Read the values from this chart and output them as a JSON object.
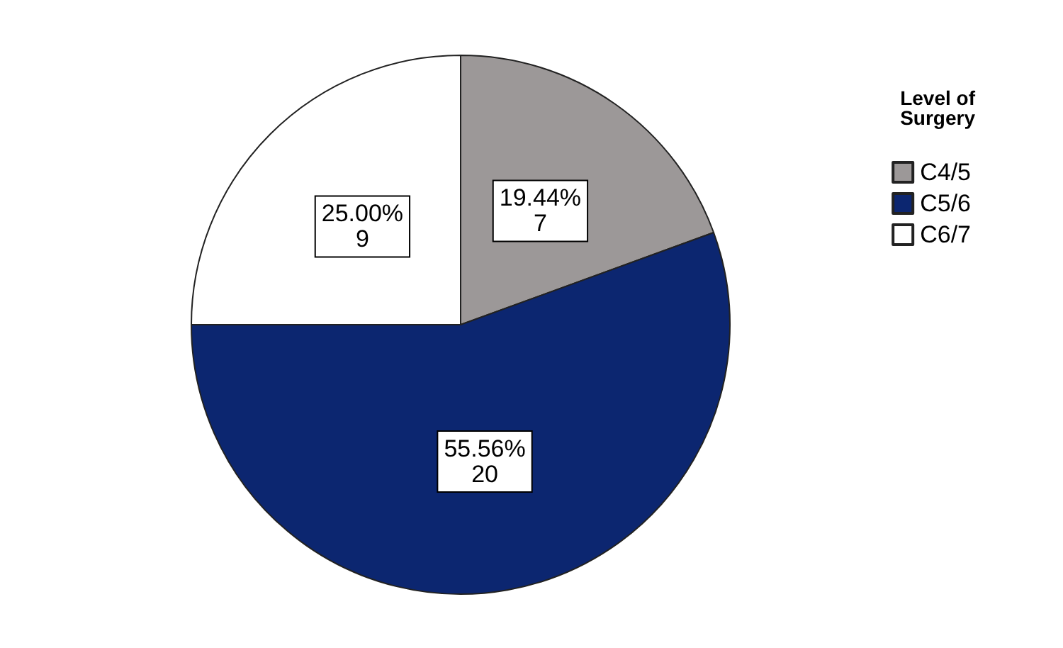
{
  "chart_data": {
    "type": "pie",
    "legend_title": "Level of\nSurgery",
    "legend": "right",
    "categories": [
      "C4/5",
      "C5/6",
      "C6/7"
    ],
    "values": [
      7,
      20,
      9
    ],
    "colors": [
      "#9c9898",
      "#0c2670",
      "#ffffff"
    ],
    "value_labels": [
      "19.44%\n7",
      "55.56%\n20",
      "25.00%\n9"
    ]
  }
}
